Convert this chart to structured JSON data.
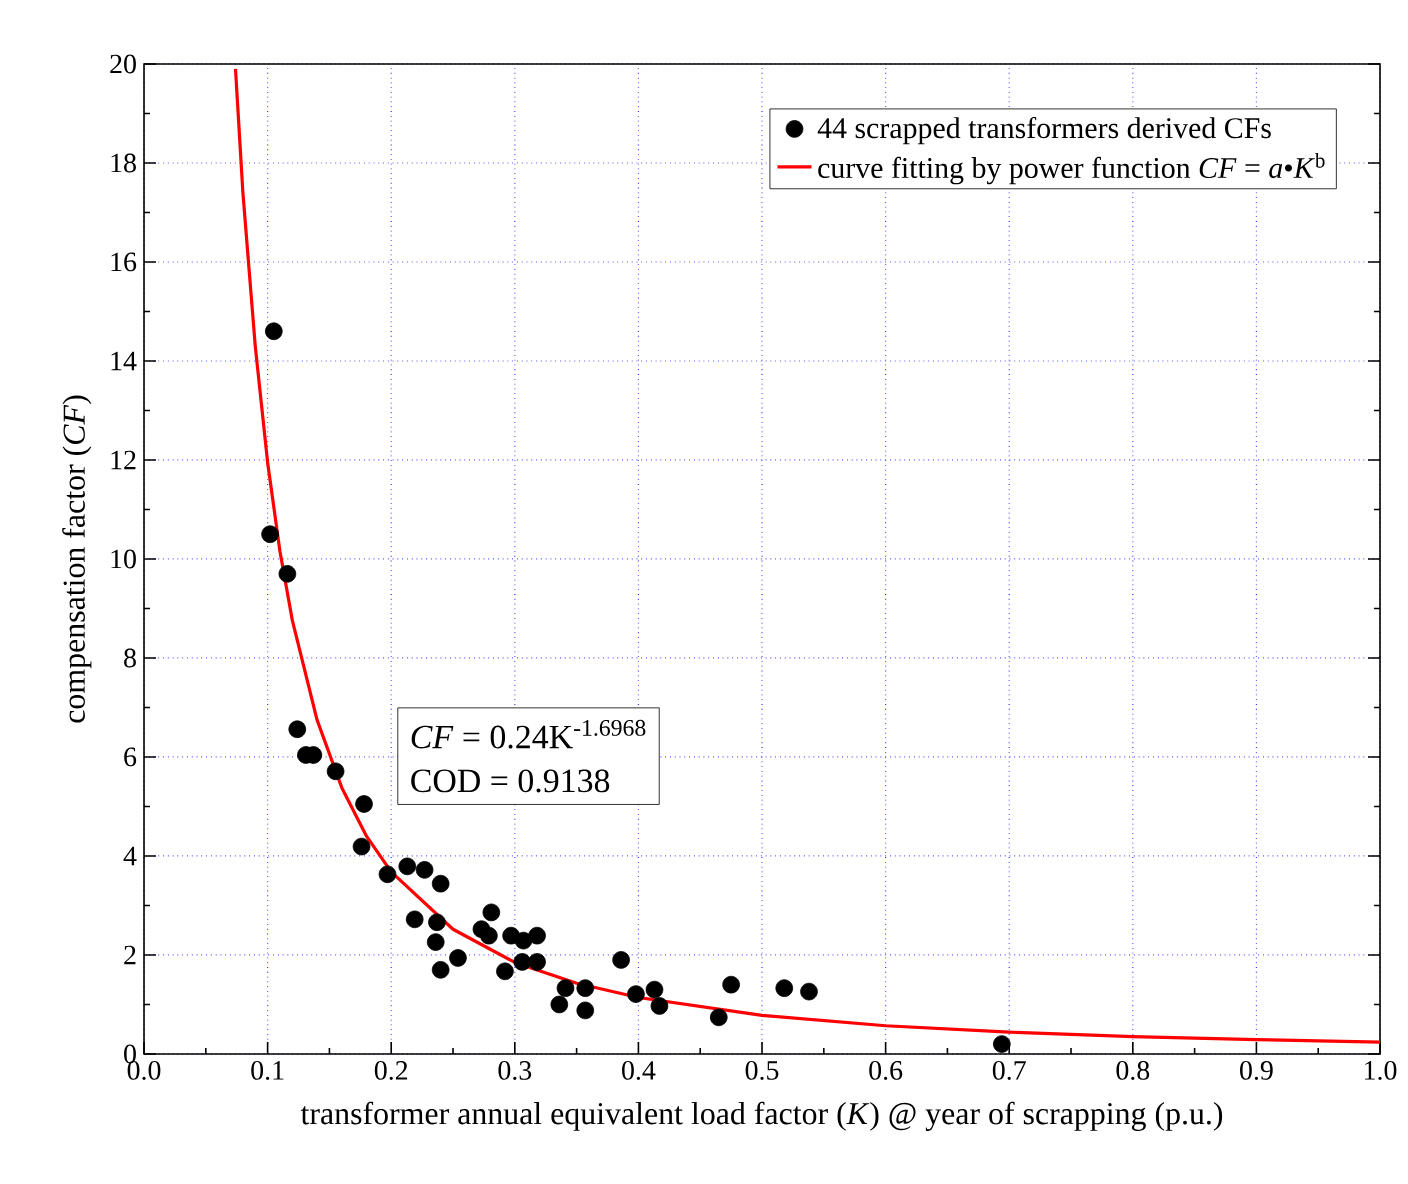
{
  "chart_data": {
    "type": "scatter",
    "xlabel": "transformer annual equivalent load factor (*K*) @ year of scrapping (p.u.)",
    "ylabel": "compensation factor (*CF*)",
    "xlim": [
      0,
      1
    ],
    "ylim": [
      0,
      20
    ],
    "xticks": [
      {
        "value": 0,
        "label": "0.0"
      },
      0.1,
      0.2,
      0.3,
      0.4,
      0.5,
      0.6,
      0.7,
      0.8,
      0.9,
      {
        "value": 1,
        "label": "1.0"
      }
    ],
    "yticks": [
      0,
      2,
      4,
      6,
      8,
      10,
      12,
      14,
      16,
      18,
      20
    ],
    "grid": true,
    "legend": "top right",
    "marker": "circle",
    "annotations": [
      "*CF* = 0.24K$^{-1.6968}$",
      "COD = 0.9138"
    ],
    "series": [
      {
        "name": "44 scrapped transformers derived CFs",
        "color": "#000000",
        "x": [
          0.105,
          0.102,
          0.116,
          0.124,
          0.131,
          0.137,
          0.155,
          0.178,
          0.176,
          0.197,
          0.213,
          0.227,
          0.24,
          0.219,
          0.237,
          0.236,
          0.24,
          0.254,
          0.281,
          0.273,
          0.279,
          0.297,
          0.307,
          0.318,
          0.292,
          0.306,
          0.318,
          0.336,
          0.341,
          0.357,
          0.357,
          0.386,
          0.398,
          0.413,
          0.417,
          0.465,
          0.475,
          0.518,
          0.538,
          0.694
        ],
        "values": [
          14.6,
          10.5,
          9.7,
          6.56,
          6.04,
          6.04,
          5.71,
          5.05,
          4.19,
          3.63,
          3.79,
          3.72,
          3.44,
          2.72,
          2.66,
          2.26,
          1.7,
          1.94,
          2.86,
          2.52,
          2.39,
          2.39,
          2.29,
          2.39,
          1.67,
          1.86,
          1.86,
          1.0,
          1.33,
          1.33,
          0.88,
          1.9,
          1.21,
          1.3,
          0.97,
          0.74,
          1.4,
          1.33,
          1.26,
          0.2
        ]
      },
      {
        "name": "curve fitting by power function *CF* = *a*•*K*$^{b}$",
        "type": "line",
        "color": "#ff0000",
        "marker": "none",
        "x": [
          0.074,
          0.08,
          0.09,
          0.1,
          0.11,
          0.12,
          0.14,
          0.16,
          0.18,
          0.2,
          0.25,
          0.3,
          0.35,
          0.4,
          0.5,
          0.6,
          0.7,
          0.8,
          0.9,
          1.0
        ],
        "values": [
          19.9,
          17.4,
          14.3,
          11.95,
          10.15,
          8.76,
          6.75,
          5.38,
          4.4,
          3.68,
          2.52,
          1.85,
          1.43,
          1.14,
          0.78,
          0.57,
          0.44,
          0.35,
          0.29,
          0.24
        ]
      }
    ]
  }
}
